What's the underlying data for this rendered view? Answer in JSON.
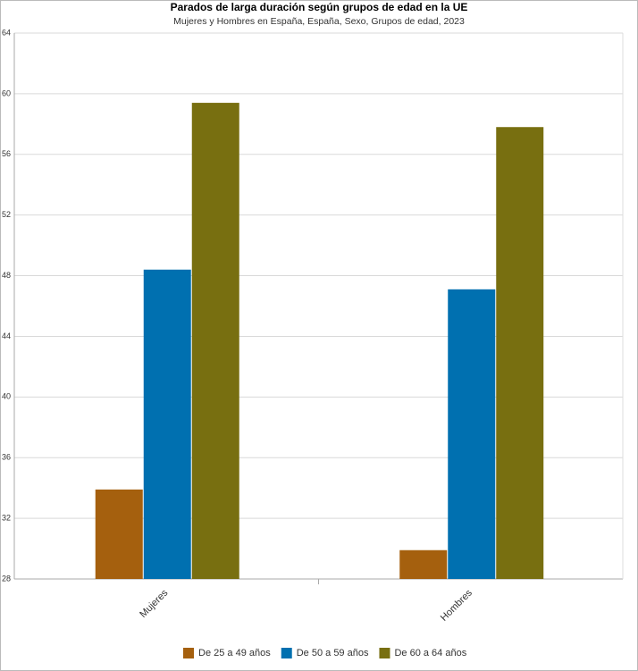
{
  "chart_data": {
    "type": "bar",
    "title": "Parados de larga duración según grupos de edad en la UE",
    "subtitle": "Mujeres y Hombres en España, España, Sexo, Grupos de edad, 2023",
    "categories": [
      "Mujeres",
      "Hombres"
    ],
    "series": [
      {
        "name": "De 25 a 49 años",
        "color": "#a5600e",
        "values": [
          33.9,
          29.9
        ]
      },
      {
        "name": "De 50 a 59 años",
        "color": "#0070b0",
        "values": [
          48.4,
          47.1
        ]
      },
      {
        "name": "De 60 a 64 años",
        "color": "#786f10",
        "values": [
          59.4,
          57.8
        ]
      }
    ],
    "ylim": [
      28,
      64
    ],
    "yticks": [
      28,
      32,
      36,
      40,
      44,
      48,
      52,
      56,
      60,
      64
    ],
    "grid": true,
    "legend": "bottom"
  }
}
